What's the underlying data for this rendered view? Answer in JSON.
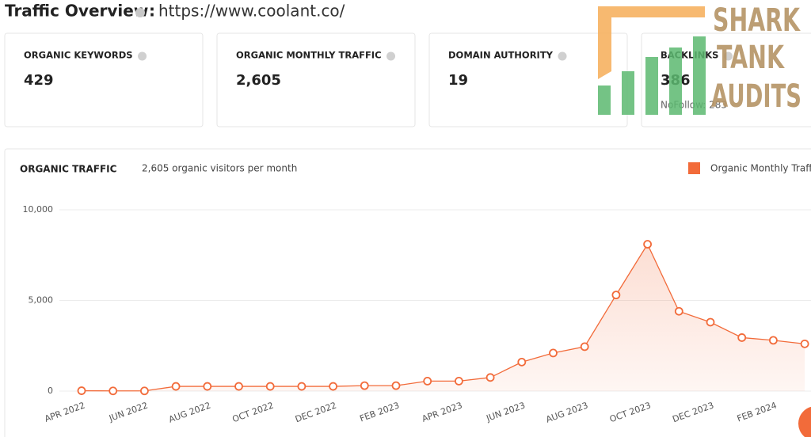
{
  "header": {
    "title": "Traffic Overview",
    "separator": ":",
    "url": "https://www.coolant.co/"
  },
  "cards": [
    {
      "label": "ORGANIC KEYWORDS",
      "value": "429"
    },
    {
      "label": "ORGANIC MONTHLY TRAFFIC",
      "value": "2,605"
    },
    {
      "label": "DOMAIN AUTHORITY",
      "value": "19"
    },
    {
      "label": "BACKLINKS",
      "value": "386",
      "note": "NoFollow: 283"
    }
  ],
  "logo": {
    "lines": [
      "SHARK",
      "TANK",
      "AUDITS"
    ]
  },
  "chart_data": {
    "type": "line",
    "title": "ORGANIC TRAFFIC",
    "subtitle": "2,605 organic visitors per month",
    "categories": [
      "APR 2022",
      null,
      "JUN 2022",
      null,
      "AUG 2022",
      null,
      "OCT 2022",
      null,
      "DEC 2022",
      null,
      "FEB 2023",
      null,
      "APR 2023",
      null,
      "JUN 2023",
      null,
      "AUG 2023",
      null,
      "OCT 2023",
      null,
      "DEC 2023",
      null,
      "FEB 2024",
      null
    ],
    "series": [
      {
        "name": "Organic Monthly Traffic",
        "color": "#f26b3a",
        "values": [
          20,
          10,
          10,
          260,
          260,
          260,
          260,
          260,
          260,
          300,
          300,
          550,
          550,
          750,
          1600,
          2100,
          2450,
          5300,
          8100,
          4400,
          3800,
          2950,
          2800,
          2605
        ]
      }
    ],
    "ylim": [
      0,
      10000
    ],
    "yticks": [
      0,
      {
        "value": 5000,
        "label": "5,000"
      },
      {
        "value": 10000,
        "label": "10,000"
      }
    ],
    "grid": true,
    "legend": "top-right"
  }
}
